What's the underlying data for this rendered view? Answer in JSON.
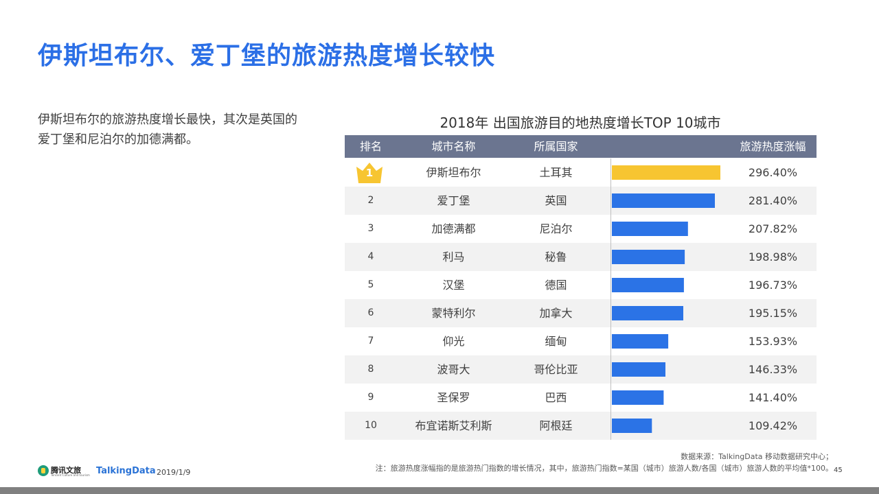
{
  "slide": {
    "title": "伊斯坦布尔、爱丁堡的旅游热度增长较快",
    "description": "伊斯坦布尔的旅游热度增长最快，其次是英国的爱丁堡和尼泊尔的加德满都。",
    "source": "数据来源：TalkingData  移动数据研究中心；",
    "note": "注：旅游热度涨幅指的是旅游热门指数的增长情况，其中，旅游热门指数=某国（城市）旅游人数/各国（城市）旅游人数的平均值*100。",
    "page_number": "45",
    "date": "2019/1/9",
    "logo_tencent": "腾讯文旅",
    "logo_tencent_sub": "Tencent Culture and tourism",
    "logo_talkingdata": "TalkingData"
  },
  "colors": {
    "title": "#2b6fe6",
    "bar": "#2b73e6",
    "bar_top": "#f7c531",
    "header_bg": "#6b7590"
  },
  "chart_data": {
    "type": "table",
    "title": "2018年 出国旅游目的地热度增长TOP 10城市",
    "columns": [
      "排名",
      "城市名称",
      "所属国家",
      "旅游热度涨幅"
    ],
    "rows": [
      {
        "rank": "1",
        "city": "伊斯坦布尔",
        "country": "土耳其",
        "growth": 296.4,
        "growth_label": "296.40%"
      },
      {
        "rank": "2",
        "city": "爱丁堡",
        "country": "英国",
        "growth": 281.4,
        "growth_label": "281.40%"
      },
      {
        "rank": "3",
        "city": "加德满都",
        "country": "尼泊尔",
        "growth": 207.82,
        "growth_label": "207.82%"
      },
      {
        "rank": "4",
        "city": "利马",
        "country": "秘鲁",
        "growth": 198.98,
        "growth_label": "198.98%"
      },
      {
        "rank": "5",
        "city": "汉堡",
        "country": "德国",
        "growth": 196.73,
        "growth_label": "196.73%"
      },
      {
        "rank": "6",
        "city": "蒙特利尔",
        "country": "加拿大",
        "growth": 195.15,
        "growth_label": "195.15%"
      },
      {
        "rank": "7",
        "city": "仰光",
        "country": "缅甸",
        "growth": 153.93,
        "growth_label": "153.93%"
      },
      {
        "rank": "8",
        "city": "波哥大",
        "country": "哥伦比亚",
        "growth": 146.33,
        "growth_label": "146.33%"
      },
      {
        "rank": "9",
        "city": "圣保罗",
        "country": "巴西",
        "growth": 141.4,
        "growth_label": "141.40%"
      },
      {
        "rank": "10",
        "city": "布宜诺斯艾利斯",
        "country": "阿根廷",
        "growth": 109.42,
        "growth_label": "109.42%"
      }
    ]
  }
}
